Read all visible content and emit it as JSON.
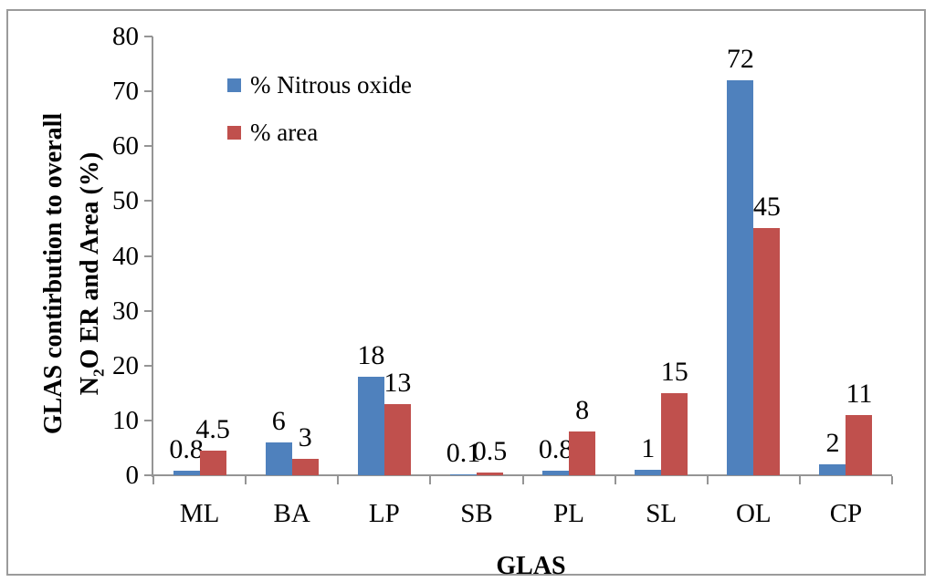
{
  "figure": {
    "border_color": "#9b9b9b",
    "background": "#ffffff"
  },
  "chart_data": {
    "type": "bar",
    "title": "",
    "xlabel": "GLAS",
    "ylabel": "GLAS contirbution to overall N2O ER and Area (%)",
    "ylabel_line1": "GLAS contirbution to overall",
    "ylabel_line2_pre": "N",
    "ylabel_line2_sub": "2",
    "ylabel_line2_post": "O ER and Area (%)",
    "categories": [
      "ML",
      "BA",
      "LP",
      "SB",
      "PL",
      "SL",
      "OL",
      "CP"
    ],
    "series": [
      {
        "name": "% Nitrous oxide",
        "color": "#4F81BD",
        "values": [
          0.8,
          6,
          18,
          0.1,
          0.8,
          1,
          72,
          2
        ],
        "data_labels": [
          "0.8",
          "6",
          "18",
          "0.1",
          "0.8",
          "1",
          "72",
          "2"
        ]
      },
      {
        "name": "% area",
        "color": "#C0504D",
        "values": [
          4.5,
          3,
          13,
          0.5,
          8,
          15,
          45,
          11
        ],
        "data_labels": [
          "4.5",
          "3",
          "13",
          "0.5",
          "8",
          "15",
          "45",
          "11"
        ]
      }
    ],
    "ylim": [
      0,
      80
    ],
    "yticks": [
      0,
      10,
      20,
      30,
      40,
      50,
      60,
      70,
      80
    ],
    "grid": false,
    "legend_position": "upper-left-inside",
    "axis_color": "#959595",
    "text_color": "#000000"
  }
}
